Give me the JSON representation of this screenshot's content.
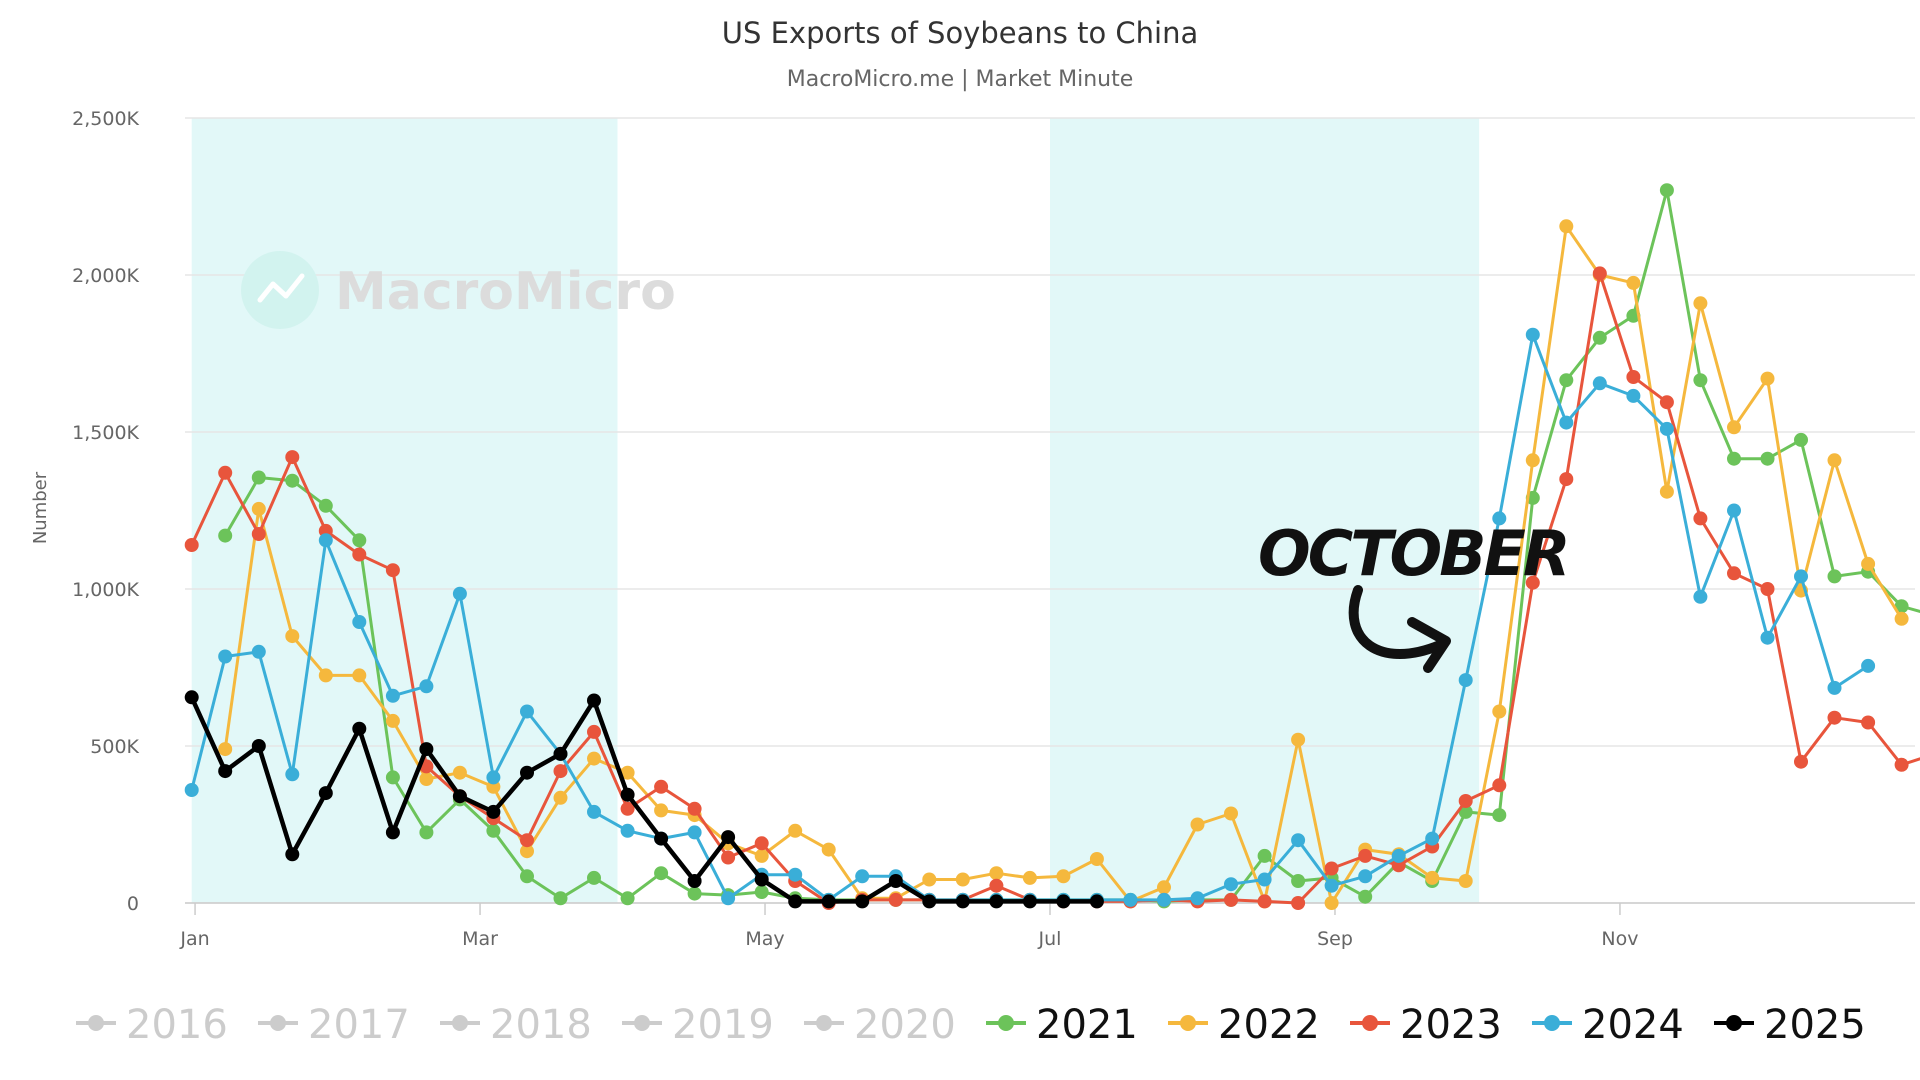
{
  "chart_data": {
    "type": "line",
    "title": "US Exports of Soybeans to China",
    "subtitle": "MacroMicro.me | Market Minute",
    "ylabel": "Number",
    "ylim": [
      0,
      2500
    ],
    "yticks": [
      0,
      500,
      1000,
      1500,
      2000,
      2500
    ],
    "ytick_labels": [
      "0",
      "500K",
      "1,000K",
      "1,500K",
      "2,000K",
      "2,500K"
    ],
    "xlim": [
      0.8,
      52.4
    ],
    "xticks": [
      1.1,
      9.6,
      18.1,
      26.6,
      35.1,
      43.6
    ],
    "xtick_labels": [
      "Jan",
      "Mar",
      "May",
      "Jul",
      "Sep",
      "Nov"
    ],
    "shaded_ranges": [
      [
        1.0,
        13.7
      ],
      [
        26.6,
        39.4
      ]
    ],
    "grid": true,
    "legend_position": "bottom",
    "annotation": "OCTOBER",
    "watermark": "MacroMicro",
    "legend": [
      {
        "name": "2016",
        "color": "#cccccc",
        "active": false
      },
      {
        "name": "2017",
        "color": "#cccccc",
        "active": false
      },
      {
        "name": "2018",
        "color": "#cccccc",
        "active": false
      },
      {
        "name": "2019",
        "color": "#cccccc",
        "active": false
      },
      {
        "name": "2020",
        "color": "#cccccc",
        "active": false
      },
      {
        "name": "2021",
        "color": "#6cc35a",
        "active": true
      },
      {
        "name": "2022",
        "color": "#f5b83d",
        "active": true
      },
      {
        "name": "2023",
        "color": "#e8553c",
        "active": true
      },
      {
        "name": "2024",
        "color": "#3aaed8",
        "active": true
      },
      {
        "name": "2025",
        "color": "#000000",
        "active": true
      }
    ],
    "series": [
      {
        "name": "2021",
        "color": "#6cc35a",
        "unit": "K",
        "values": [
          null,
          1170,
          1355,
          1345,
          1265,
          1155,
          400,
          225,
          330,
          230,
          85,
          15,
          80,
          15,
          95,
          30,
          25,
          35,
          15,
          10,
          10,
          10,
          10,
          10,
          10,
          10,
          10,
          10,
          10,
          5,
          10,
          10,
          150,
          70,
          80,
          20,
          130,
          70,
          290,
          280,
          1290,
          1665,
          1800,
          1870,
          2270,
          1665,
          1415,
          1415,
          1475,
          1040,
          1055,
          945,
          915
        ]
      },
      {
        "name": "2022",
        "color": "#f5b83d",
        "unit": "K",
        "values": [
          null,
          490,
          1255,
          850,
          725,
          725,
          580,
          395,
          415,
          370,
          165,
          335,
          460,
          415,
          295,
          280,
          190,
          150,
          230,
          170,
          15,
          15,
          75,
          75,
          95,
          80,
          85,
          140,
          5,
          50,
          250,
          285,
          5,
          520,
          0,
          170,
          155,
          80,
          70,
          610,
          1410,
          2155,
          2000,
          1975,
          1310,
          1910,
          1515,
          1670,
          995,
          1410,
          1080,
          905
        ]
      },
      {
        "name": "2023",
        "color": "#e8553c",
        "unit": "K",
        "values": [
          1140,
          1370,
          1175,
          1420,
          1185,
          1110,
          1060,
          435,
          340,
          270,
          200,
          420,
          545,
          300,
          370,
          300,
          145,
          190,
          70,
          0,
          10,
          10,
          10,
          10,
          55,
          10,
          5,
          5,
          5,
          10,
          5,
          10,
          5,
          0,
          110,
          150,
          120,
          180,
          325,
          375,
          1020,
          1350,
          2005,
          1675,
          1595,
          1225,
          1050,
          1000,
          450,
          590,
          575,
          440,
          475
        ]
      },
      {
        "name": "2024",
        "color": "#3aaed8",
        "unit": "K",
        "values": [
          360,
          785,
          800,
          410,
          1155,
          895,
          660,
          690,
          985,
          400,
          610,
          475,
          290,
          230,
          205,
          225,
          15,
          90,
          90,
          10,
          85,
          85,
          10,
          10,
          10,
          10,
          10,
          10,
          10,
          10,
          15,
          60,
          75,
          200,
          55,
          85,
          150,
          205,
          710,
          1225,
          1810,
          1530,
          1655,
          1615,
          1510,
          975,
          1250,
          845,
          1040,
          685,
          755
        ]
      },
      {
        "name": "2025",
        "color": "#000000",
        "unit": "K",
        "values": [
          655,
          420,
          500,
          155,
          350,
          555,
          225,
          490,
          340,
          290,
          415,
          475,
          645,
          345,
          205,
          70,
          210,
          75,
          5,
          5,
          5,
          70,
          5,
          5,
          5,
          5,
          5,
          5
        ]
      }
    ]
  }
}
